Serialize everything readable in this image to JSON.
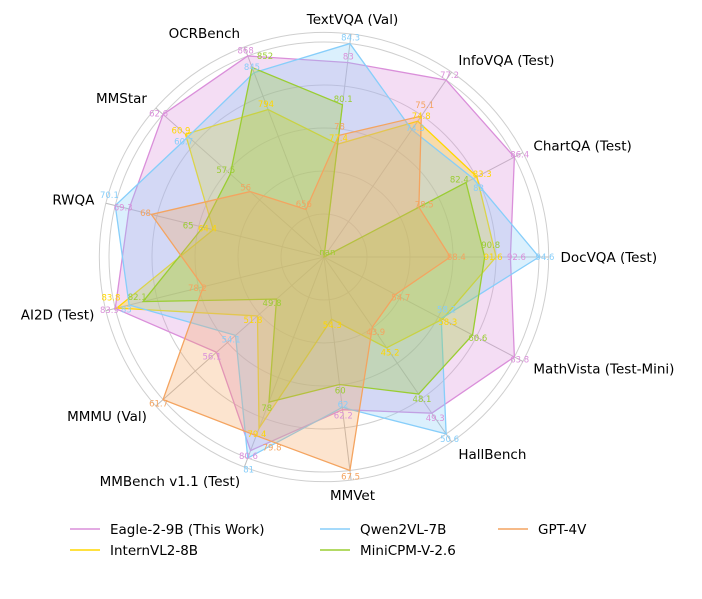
{
  "chart_data": {
    "type": "radar",
    "axes": [
      "DocVQA (Test)",
      "ChartQA (Test)",
      "InfoVQA (Test)",
      "TextVQA (Val)",
      "OCRBench",
      "MMStar",
      "RWQA",
      "AI2D (Test)",
      "MMMU (Val)",
      "MMBench v1.1 (Test)",
      "MMVet",
      "HallBench",
      "MathVista (Test-Mini)"
    ],
    "grid": true,
    "legend_placement": "bottom",
    "series": [
      {
        "name": "Eagle-2-9B (This Work)",
        "color": "#DA8FDA",
        "values": [
          92.6,
          86.4,
          77.2,
          83.0,
          868,
          62.6,
          69.3,
          83.9,
          56.1,
          80.6,
          62.2,
          49.3,
          63.8
        ]
      },
      {
        "name": "InternVL2-8B",
        "color": "#FFD700",
        "values": [
          91.6,
          83.3,
          74.8,
          77.4,
          794,
          60.9,
          64.4,
          83.8,
          51.8,
          79.4,
          54.3,
          45.2,
          58.3
        ]
      },
      {
        "name": "Qwen2VL-7B",
        "color": "#87CEFA",
        "values": [
          94.6,
          83.0,
          74.3,
          84.3,
          845,
          60.7,
          70.1,
          83.0,
          54.1,
          81.0,
          62.0,
          50.6,
          58.2
        ]
      },
      {
        "name": "MiniCPM-V-2.6",
        "color": "#9ACD32",
        "values": [
          90.8,
          82.4,
          "nan",
          80.1,
          852,
          57.5,
          65.0,
          82.1,
          49.8,
          78.0,
          60.0,
          48.1,
          60.6
        ]
      },
      {
        "name": "GPT-4V",
        "color": "#F4A460",
        "values": [
          88.4,
          78.5,
          75.1,
          78.0,
          656,
          56,
          68.0,
          78.2,
          61.7,
          79.8,
          67.5,
          43.9,
          54.7
        ]
      }
    ]
  }
}
